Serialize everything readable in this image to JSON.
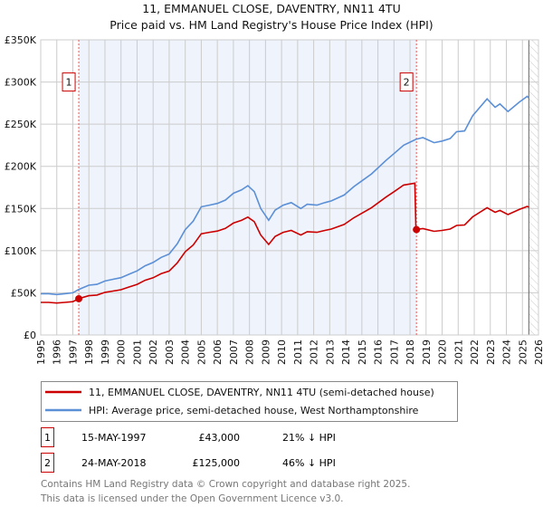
{
  "chart_data": {
    "type": "line",
    "title": "11, EMMANUEL CLOSE, DAVENTRY, NN11 4TU",
    "subtitle": "Price paid vs. HM Land Registry's House Price Index (HPI)",
    "xlim": [
      1995,
      2026
    ],
    "ylim": [
      0,
      350000
    ],
    "x_ticks": [
      1995,
      1996,
      1997,
      1998,
      1999,
      2000,
      2001,
      2002,
      2003,
      2004,
      2005,
      2006,
      2007,
      2008,
      2009,
      2010,
      2011,
      2012,
      2013,
      2014,
      2015,
      2016,
      2017,
      2018,
      2019,
      2020,
      2021,
      2022,
      2023,
      2024,
      2025,
      2026
    ],
    "y_ticks": [
      0,
      50000,
      100000,
      150000,
      200000,
      250000,
      300000,
      350000
    ],
    "y_tick_labels": [
      "£0",
      "£50K",
      "£100K",
      "£150K",
      "£200K",
      "£250K",
      "£300K",
      "£350K"
    ],
    "grid": true,
    "shaded_range": [
      1997.37,
      2018.4
    ],
    "hatched_from": 2025.4,
    "colors": {
      "property": "#cc0000",
      "hpi": "#5b8fd6",
      "shade": "#eef3fc",
      "marker_line": "#ee5555"
    },
    "series": [
      {
        "name": "11, EMMANUEL CLOSE, DAVENTRY, NN11 4TU (semi-detached house)",
        "color": "#cc0000",
        "x": [
          1995,
          1995.5,
          1996,
          1996.5,
          1997,
          1997.37,
          1998,
          1998.5,
          1999,
          1999.5,
          2000,
          2000.5,
          2001,
          2001.5,
          2002,
          2002.5,
          2003,
          2003.5,
          2004,
          2004.5,
          2005,
          2005.5,
          2006,
          2006.5,
          2007,
          2007.5,
          2007.9,
          2008.3,
          2008.7,
          2009.2,
          2009.6,
          2010.1,
          2010.6,
          2011.2,
          2011.6,
          2012.2,
          2012.7,
          2013.1,
          2013.9,
          2014.5,
          2014.8,
          2015.6,
          2016.5,
          2017,
          2017.6,
          2018.3,
          2018.37,
          2018.8,
          2019.5,
          2020,
          2020.5,
          2020.9,
          2021.4,
          2021.9,
          2022.8,
          2023.3,
          2023.6,
          2024.1,
          2024.8,
          2025.3,
          2025.4
        ],
        "values": [
          38700,
          38700,
          37900,
          38700,
          39500,
          43000,
          46600,
          47400,
          50600,
          52100,
          53700,
          56900,
          60000,
          64800,
          67900,
          72700,
          75800,
          85300,
          98800,
          106700,
          120000,
          121700,
          123200,
          126400,
          132700,
          135900,
          139800,
          134300,
          118500,
          107400,
          116900,
          121700,
          124000,
          118500,
          122500,
          121700,
          124000,
          125600,
          131100,
          139000,
          142200,
          150900,
          163500,
          169900,
          177800,
          180000,
          125000,
          126100,
          122900,
          124000,
          125600,
          129900,
          130400,
          140100,
          150900,
          145500,
          147700,
          142800,
          148800,
          152500,
          151500
        ]
      },
      {
        "name": "HPI: Average price, semi-detached house, West Northamptonshire",
        "color": "#5b8fd6",
        "x": [
          1995,
          1995.5,
          1996,
          1996.5,
          1997,
          1997.37,
          1998,
          1998.5,
          1999,
          1999.5,
          2000,
          2000.5,
          2001,
          2001.5,
          2002,
          2002.5,
          2003,
          2003.5,
          2004,
          2004.5,
          2005,
          2005.5,
          2006,
          2006.5,
          2007,
          2007.5,
          2007.9,
          2008.3,
          2008.7,
          2009.2,
          2009.6,
          2010.1,
          2010.6,
          2011.2,
          2011.6,
          2012.2,
          2012.7,
          2013.1,
          2013.9,
          2014.5,
          2014.8,
          2015.6,
          2016.5,
          2017,
          2017.6,
          2018.37,
          2018.8,
          2019.5,
          2020,
          2020.5,
          2020.9,
          2021.4,
          2021.9,
          2022.8,
          2023.3,
          2023.6,
          2024.1,
          2024.8,
          2025.3,
          2025.4
        ],
        "values": [
          49000,
          49000,
          48000,
          49000,
          50000,
          54000,
          59000,
          60000,
          64000,
          66000,
          68000,
          72000,
          76000,
          82000,
          86000,
          92000,
          96000,
          108000,
          125000,
          135000,
          152000,
          154000,
          156000,
          160000,
          168000,
          172000,
          177000,
          170000,
          150000,
          136000,
          148000,
          154000,
          157000,
          150000,
          155000,
          154000,
          157000,
          159000,
          166000,
          176000,
          180000,
          191000,
          207000,
          215000,
          225000,
          232000,
          234000,
          228000,
          230000,
          233000,
          241000,
          242000,
          260000,
          280000,
          270000,
          274000,
          265000,
          276000,
          283000,
          281000
        ]
      }
    ],
    "sales": [
      {
        "label": "1",
        "x": 1997.37,
        "value": 43000,
        "date": "15-MAY-1997",
        "price": "£43,000",
        "hpi_diff": "21% ↓ HPI"
      },
      {
        "label": "2",
        "x": 2018.4,
        "value": 125000,
        "date": "24-MAY-2018",
        "price": "£125,000",
        "hpi_diff": "46% ↓ HPI"
      }
    ],
    "legend": {
      "placement": "below",
      "entries": [
        "11, EMMANUEL CLOSE, DAVENTRY, NN11 4TU (semi-detached house)",
        "HPI: Average price, semi-detached house, West Northamptonshire"
      ]
    },
    "footer": [
      "Contains HM Land Registry data © Crown copyright and database right 2025.",
      "This data is licensed under the Open Government Licence v3.0."
    ]
  }
}
